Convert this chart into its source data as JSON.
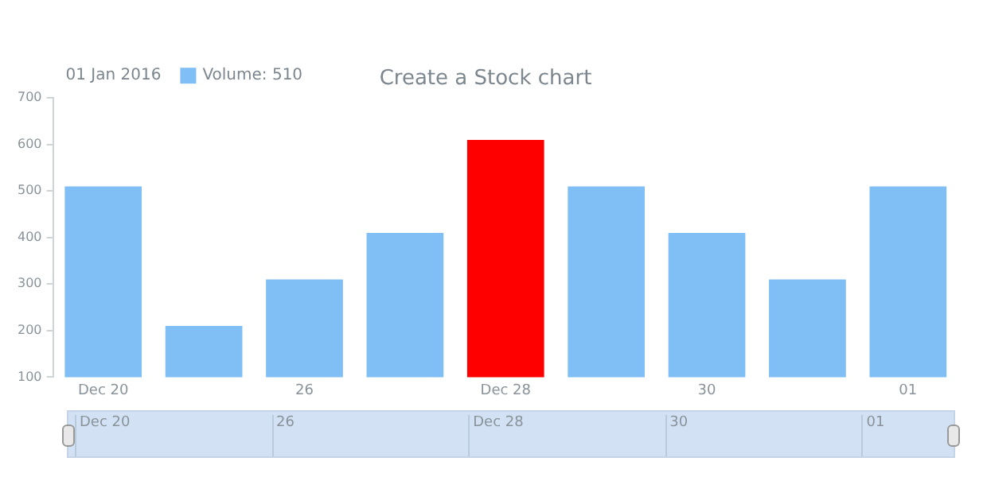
{
  "chart_data": {
    "type": "bar",
    "title": "Create a Stock chart",
    "legend_title": "01 Jan 2016",
    "categories": [
      "Dec 20",
      null,
      "26",
      null,
      "Dec 28",
      null,
      "30",
      null,
      "01"
    ],
    "series": [
      {
        "name": "Volume: 510",
        "color": "#7fbff5",
        "colors": [
          "#7fbff5",
          "#7fbff5",
          "#7fbff5",
          "#7fbff5",
          "#ff0000",
          "#7fbff5",
          "#7fbff5",
          "#7fbff5",
          "#7fbff5"
        ],
        "values": [
          510,
          210,
          310,
          410,
          610,
          510,
          410,
          310,
          510
        ]
      }
    ],
    "ylim": [
      100,
      700
    ],
    "yticks": [
      100,
      200,
      300,
      400,
      500,
      600,
      700
    ],
    "grid": false,
    "legend": "top left"
  }
}
